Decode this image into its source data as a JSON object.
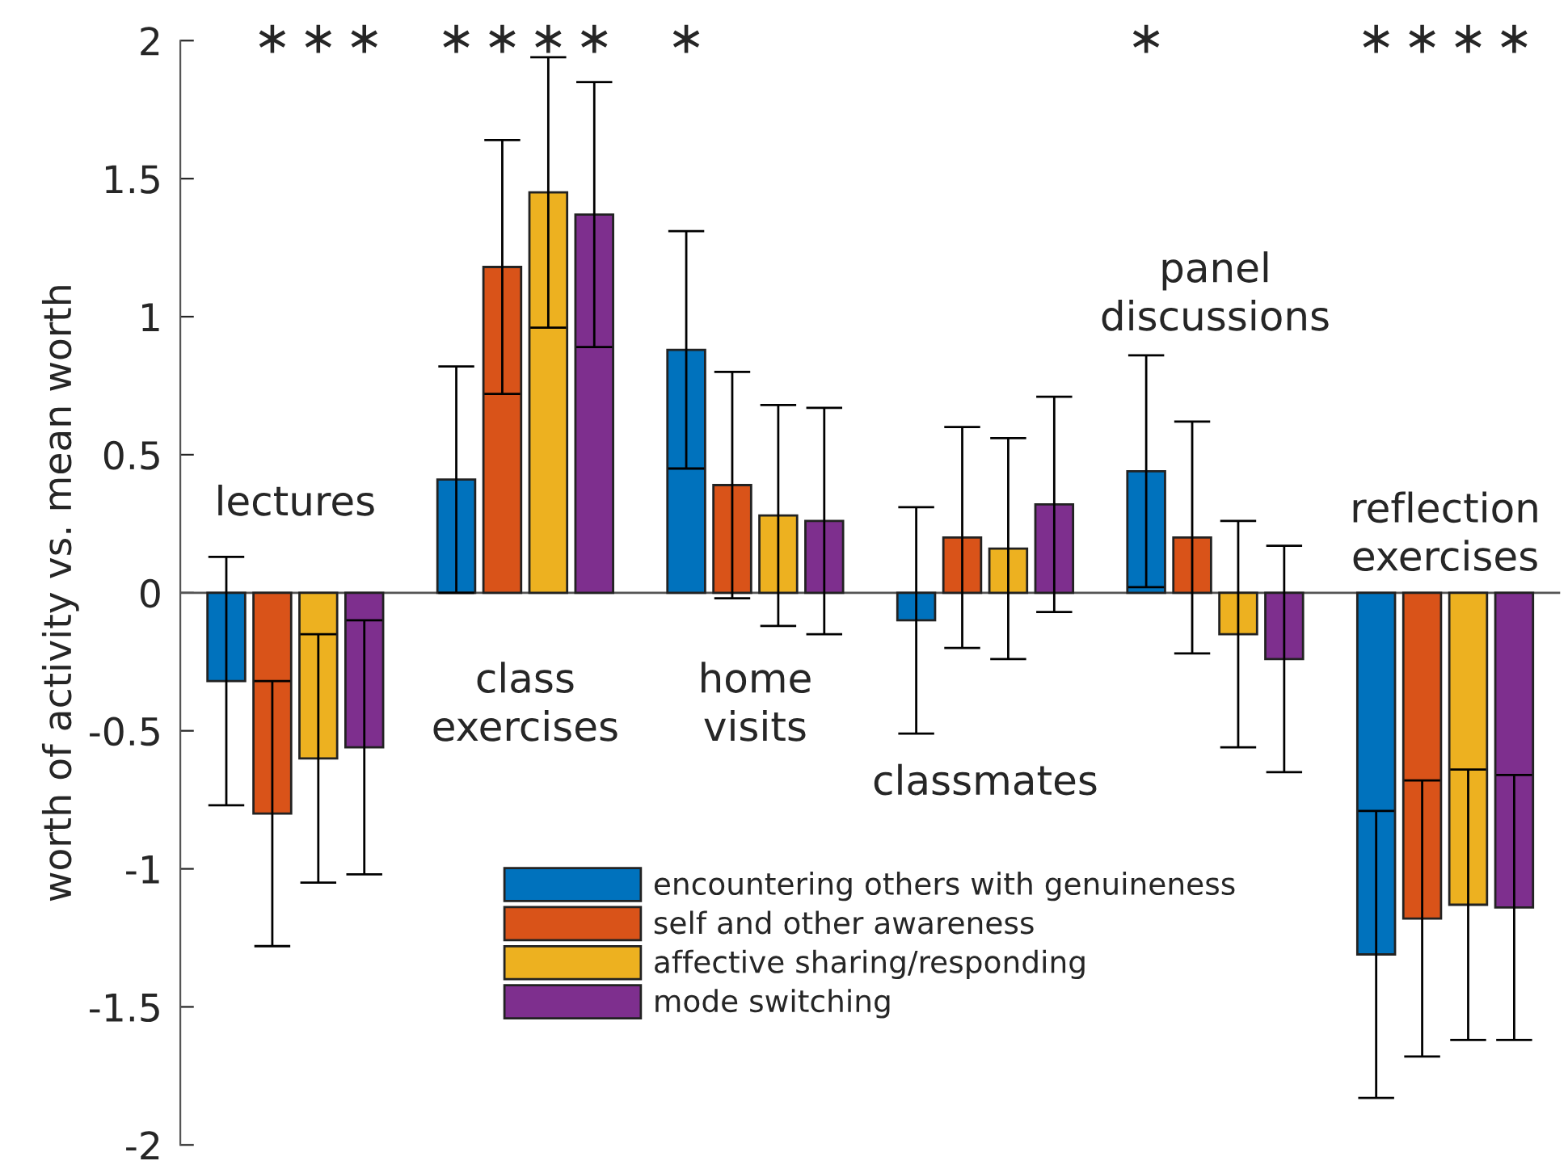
{
  "chart_data": {
    "type": "bar",
    "ylabel": "worth of activity vs. mean worth",
    "categories": [
      "lectures",
      "class\nexercises",
      "home\nvisits",
      "classmates",
      "panel\ndiscussions",
      "reflection\nexercises"
    ],
    "series": [
      {
        "name": "encountering others with genuineness",
        "color": "#0072bd",
        "values": [
          -0.32,
          0.41,
          0.88,
          -0.1,
          0.44,
          -1.31
        ],
        "errors": [
          0.45,
          0.41,
          0.43,
          0.41,
          0.42,
          0.52
        ]
      },
      {
        "name": "self and other awareness",
        "color": "#d95319",
        "values": [
          -0.8,
          1.18,
          0.39,
          0.2,
          0.2,
          -1.18
        ],
        "errors": [
          0.48,
          0.46,
          0.41,
          0.4,
          0.42,
          0.5
        ]
      },
      {
        "name": "affective sharing/responding",
        "color": "#edb120",
        "values": [
          -0.6,
          1.45,
          0.28,
          0.16,
          -0.15,
          -1.13
        ],
        "errors": [
          0.45,
          0.49,
          0.4,
          0.4,
          0.41,
          0.49
        ]
      },
      {
        "name": "mode switching",
        "color": "#7e2f8e",
        "values": [
          -0.56,
          1.37,
          0.26,
          0.32,
          -0.24,
          -1.14
        ],
        "errors": [
          0.46,
          0.48,
          0.41,
          0.39,
          0.41,
          0.48
        ]
      }
    ],
    "annotations": [
      "∗ ∗ ∗",
      "∗ ∗ ∗ ∗",
      "∗",
      "∗",
      "∗ ∗ ∗ ∗"
    ],
    "ylim": [
      -2,
      2
    ],
    "yticks": [
      -2,
      -1.5,
      -1,
      -0.5,
      0,
      0.5,
      1,
      1.5,
      2
    ],
    "grid": false,
    "legend": "bottom"
  }
}
